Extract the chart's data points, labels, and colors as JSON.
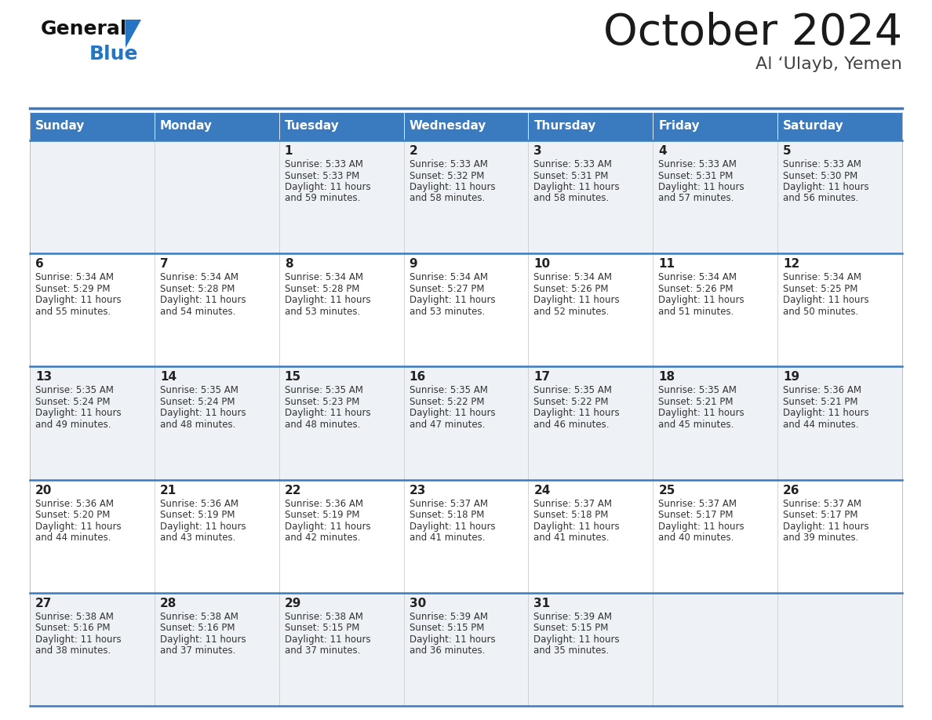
{
  "title": "October 2024",
  "subtitle": "Al ‘Ulayb, Yemen",
  "header_bg": "#3a7abf",
  "header_text_color": "#ffffff",
  "cell_bg_even": "#eef1f5",
  "cell_bg_odd": "#ffffff",
  "row_line_color": "#3a7abf",
  "days_of_week": [
    "Sunday",
    "Monday",
    "Tuesday",
    "Wednesday",
    "Thursday",
    "Friday",
    "Saturday"
  ],
  "weeks": [
    [
      {
        "day": "",
        "sunrise": "",
        "sunset": "",
        "daylight": ""
      },
      {
        "day": "",
        "sunrise": "",
        "sunset": "",
        "daylight": ""
      },
      {
        "day": "1",
        "sunrise": "Sunrise: 5:33 AM",
        "sunset": "Sunset: 5:33 PM",
        "daylight": "Daylight: 11 hours\nand 59 minutes."
      },
      {
        "day": "2",
        "sunrise": "Sunrise: 5:33 AM",
        "sunset": "Sunset: 5:32 PM",
        "daylight": "Daylight: 11 hours\nand 58 minutes."
      },
      {
        "day": "3",
        "sunrise": "Sunrise: 5:33 AM",
        "sunset": "Sunset: 5:31 PM",
        "daylight": "Daylight: 11 hours\nand 58 minutes."
      },
      {
        "day": "4",
        "sunrise": "Sunrise: 5:33 AM",
        "sunset": "Sunset: 5:31 PM",
        "daylight": "Daylight: 11 hours\nand 57 minutes."
      },
      {
        "day": "5",
        "sunrise": "Sunrise: 5:33 AM",
        "sunset": "Sunset: 5:30 PM",
        "daylight": "Daylight: 11 hours\nand 56 minutes."
      }
    ],
    [
      {
        "day": "6",
        "sunrise": "Sunrise: 5:34 AM",
        "sunset": "Sunset: 5:29 PM",
        "daylight": "Daylight: 11 hours\nand 55 minutes."
      },
      {
        "day": "7",
        "sunrise": "Sunrise: 5:34 AM",
        "sunset": "Sunset: 5:28 PM",
        "daylight": "Daylight: 11 hours\nand 54 minutes."
      },
      {
        "day": "8",
        "sunrise": "Sunrise: 5:34 AM",
        "sunset": "Sunset: 5:28 PM",
        "daylight": "Daylight: 11 hours\nand 53 minutes."
      },
      {
        "day": "9",
        "sunrise": "Sunrise: 5:34 AM",
        "sunset": "Sunset: 5:27 PM",
        "daylight": "Daylight: 11 hours\nand 53 minutes."
      },
      {
        "day": "10",
        "sunrise": "Sunrise: 5:34 AM",
        "sunset": "Sunset: 5:26 PM",
        "daylight": "Daylight: 11 hours\nand 52 minutes."
      },
      {
        "day": "11",
        "sunrise": "Sunrise: 5:34 AM",
        "sunset": "Sunset: 5:26 PM",
        "daylight": "Daylight: 11 hours\nand 51 minutes."
      },
      {
        "day": "12",
        "sunrise": "Sunrise: 5:34 AM",
        "sunset": "Sunset: 5:25 PM",
        "daylight": "Daylight: 11 hours\nand 50 minutes."
      }
    ],
    [
      {
        "day": "13",
        "sunrise": "Sunrise: 5:35 AM",
        "sunset": "Sunset: 5:24 PM",
        "daylight": "Daylight: 11 hours\nand 49 minutes."
      },
      {
        "day": "14",
        "sunrise": "Sunrise: 5:35 AM",
        "sunset": "Sunset: 5:24 PM",
        "daylight": "Daylight: 11 hours\nand 48 minutes."
      },
      {
        "day": "15",
        "sunrise": "Sunrise: 5:35 AM",
        "sunset": "Sunset: 5:23 PM",
        "daylight": "Daylight: 11 hours\nand 48 minutes."
      },
      {
        "day": "16",
        "sunrise": "Sunrise: 5:35 AM",
        "sunset": "Sunset: 5:22 PM",
        "daylight": "Daylight: 11 hours\nand 47 minutes."
      },
      {
        "day": "17",
        "sunrise": "Sunrise: 5:35 AM",
        "sunset": "Sunset: 5:22 PM",
        "daylight": "Daylight: 11 hours\nand 46 minutes."
      },
      {
        "day": "18",
        "sunrise": "Sunrise: 5:35 AM",
        "sunset": "Sunset: 5:21 PM",
        "daylight": "Daylight: 11 hours\nand 45 minutes."
      },
      {
        "day": "19",
        "sunrise": "Sunrise: 5:36 AM",
        "sunset": "Sunset: 5:21 PM",
        "daylight": "Daylight: 11 hours\nand 44 minutes."
      }
    ],
    [
      {
        "day": "20",
        "sunrise": "Sunrise: 5:36 AM",
        "sunset": "Sunset: 5:20 PM",
        "daylight": "Daylight: 11 hours\nand 44 minutes."
      },
      {
        "day": "21",
        "sunrise": "Sunrise: 5:36 AM",
        "sunset": "Sunset: 5:19 PM",
        "daylight": "Daylight: 11 hours\nand 43 minutes."
      },
      {
        "day": "22",
        "sunrise": "Sunrise: 5:36 AM",
        "sunset": "Sunset: 5:19 PM",
        "daylight": "Daylight: 11 hours\nand 42 minutes."
      },
      {
        "day": "23",
        "sunrise": "Sunrise: 5:37 AM",
        "sunset": "Sunset: 5:18 PM",
        "daylight": "Daylight: 11 hours\nand 41 minutes."
      },
      {
        "day": "24",
        "sunrise": "Sunrise: 5:37 AM",
        "sunset": "Sunset: 5:18 PM",
        "daylight": "Daylight: 11 hours\nand 41 minutes."
      },
      {
        "day": "25",
        "sunrise": "Sunrise: 5:37 AM",
        "sunset": "Sunset: 5:17 PM",
        "daylight": "Daylight: 11 hours\nand 40 minutes."
      },
      {
        "day": "26",
        "sunrise": "Sunrise: 5:37 AM",
        "sunset": "Sunset: 5:17 PM",
        "daylight": "Daylight: 11 hours\nand 39 minutes."
      }
    ],
    [
      {
        "day": "27",
        "sunrise": "Sunrise: 5:38 AM",
        "sunset": "Sunset: 5:16 PM",
        "daylight": "Daylight: 11 hours\nand 38 minutes."
      },
      {
        "day": "28",
        "sunrise": "Sunrise: 5:38 AM",
        "sunset": "Sunset: 5:16 PM",
        "daylight": "Daylight: 11 hours\nand 37 minutes."
      },
      {
        "day": "29",
        "sunrise": "Sunrise: 5:38 AM",
        "sunset": "Sunset: 5:15 PM",
        "daylight": "Daylight: 11 hours\nand 37 minutes."
      },
      {
        "day": "30",
        "sunrise": "Sunrise: 5:39 AM",
        "sunset": "Sunset: 5:15 PM",
        "daylight": "Daylight: 11 hours\nand 36 minutes."
      },
      {
        "day": "31",
        "sunrise": "Sunrise: 5:39 AM",
        "sunset": "Sunset: 5:15 PM",
        "daylight": "Daylight: 11 hours\nand 35 minutes."
      },
      {
        "day": "",
        "sunrise": "",
        "sunset": "",
        "daylight": ""
      },
      {
        "day": "",
        "sunrise": "",
        "sunset": "",
        "daylight": ""
      }
    ]
  ],
  "title_fontsize": 40,
  "subtitle_fontsize": 16,
  "header_fontsize": 11,
  "day_num_fontsize": 11,
  "cell_text_fontsize": 8.5,
  "logo_fontsize_general": 18,
  "logo_fontsize_blue": 18
}
